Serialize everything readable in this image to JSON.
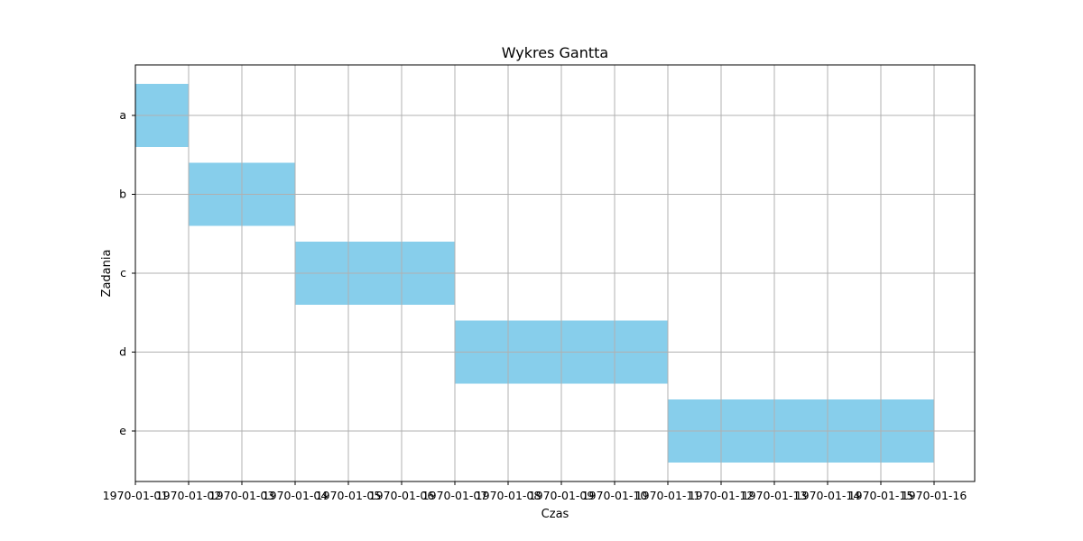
{
  "chart_data": {
    "type": "bar",
    "orientation": "horizontal",
    "title": "Wykres Gantta",
    "xlabel": "Czas",
    "ylabel": "Zadania",
    "grid": true,
    "bar_color": "#87CEEB",
    "grid_color": "#b0b0b0",
    "categories": [
      "a",
      "b",
      "c",
      "d",
      "e"
    ],
    "tasks": [
      {
        "name": "a",
        "start": "1970-01-01",
        "end": "1970-01-02"
      },
      {
        "name": "b",
        "start": "1970-01-02",
        "end": "1970-01-04"
      },
      {
        "name": "c",
        "start": "1970-01-04",
        "end": "1970-01-07"
      },
      {
        "name": "d",
        "start": "1970-01-07",
        "end": "1970-01-11"
      },
      {
        "name": "e",
        "start": "1970-01-11",
        "end": "1970-01-16"
      }
    ],
    "xlim": [
      "1970-01-01",
      "1970-01-16"
    ],
    "x_ticks": [
      "1970-01-01",
      "1970-01-02",
      "1970-01-03",
      "1970-01-04",
      "1970-01-05",
      "1970-01-06",
      "1970-01-07",
      "1970-01-08",
      "1970-01-09",
      "1970-01-10",
      "1970-01-11",
      "1970-01-12",
      "1970-01-13",
      "1970-01-14",
      "1970-01-15",
      "1970-01-16"
    ]
  }
}
